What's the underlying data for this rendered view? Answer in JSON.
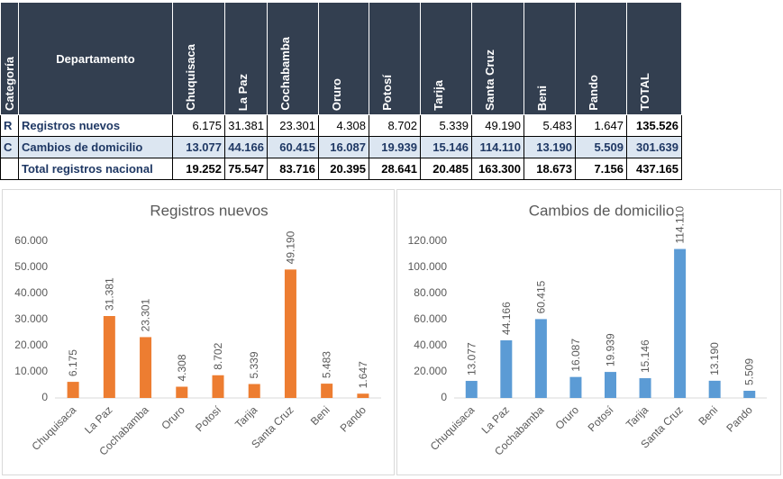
{
  "table": {
    "header": {
      "category": "Categoría",
      "department": "Departamento",
      "columns": [
        "Chuquisaca",
        "La Paz",
        "Cochabamba",
        "Oruro",
        "Potosí",
        "Tarija",
        "Santa Cruz",
        "Beni",
        "Pando",
        "TOTAL"
      ]
    },
    "rows": [
      {
        "category": "R",
        "name": "Registros nuevos",
        "values": [
          "6.175",
          "31.381",
          "23.301",
          "4.308",
          "8.702",
          "5.339",
          "49.190",
          "5.483",
          "1.647",
          "135.526"
        ]
      },
      {
        "category": "C",
        "name": "Cambios de domicilio",
        "values": [
          "13.077",
          "44.166",
          "60.415",
          "16.087",
          "19.939",
          "15.146",
          "114.110",
          "13.190",
          "5.509",
          "301.639"
        ]
      },
      {
        "name": "Total registros nacional",
        "values": [
          "19.252",
          "75.547",
          "83.716",
          "20.395",
          "28.641",
          "20.485",
          "163.300",
          "18.673",
          "7.156",
          "437.165"
        ]
      }
    ]
  },
  "chart_data": [
    {
      "type": "bar",
      "title": "Registros nuevos",
      "color": "#ed7d31",
      "categories": [
        "Chuquisaca",
        "La Paz",
        "Cochabamba",
        "Oruro",
        "Potosí",
        "Tarija",
        "Santa Cruz",
        "Beni",
        "Pando"
      ],
      "values": [
        6175,
        31381,
        23301,
        4308,
        8702,
        5339,
        49190,
        5483,
        1647
      ],
      "value_labels": [
        "6.175",
        "31.381",
        "23.301",
        "4.308",
        "8.702",
        "5.339",
        "49.190",
        "5.483",
        "1.647"
      ],
      "ylim": [
        0,
        60000
      ],
      "yticks": [
        0,
        {
          "value": 10000,
          "label": "10.000"
        },
        {
          "value": 20000,
          "label": "20.000"
        },
        {
          "value": 30000,
          "label": "30.000"
        },
        {
          "value": 40000,
          "label": "40.000"
        },
        {
          "value": 50000,
          "label": "50.000"
        },
        {
          "value": 60000,
          "label": "60.000"
        }
      ]
    },
    {
      "type": "bar",
      "title": "Cambios de domicilio",
      "color": "#5b9bd5",
      "categories": [
        "Chuquisaca",
        "La Paz",
        "Cochabamba",
        "Oruro",
        "Potosí",
        "Tarija",
        "Santa Cruz",
        "Beni",
        "Pando"
      ],
      "values": [
        13077,
        44166,
        60415,
        16087,
        19939,
        15146,
        114110,
        13190,
        5509
      ],
      "value_labels": [
        "13.077",
        "44.166",
        "60.415",
        "16.087",
        "19.939",
        "15.146",
        "114.110",
        "13.190",
        "5.509"
      ],
      "ylim": [
        0,
        120000
      ],
      "yticks": [
        0,
        {
          "value": 20000,
          "label": "20.000"
        },
        {
          "value": 40000,
          "label": "40.000"
        },
        {
          "value": 60000,
          "label": "60.000"
        },
        {
          "value": 80000,
          "label": "80.000"
        },
        {
          "value": 100000,
          "label": "100.000"
        },
        {
          "value": 120000,
          "label": "120.000"
        }
      ]
    }
  ]
}
